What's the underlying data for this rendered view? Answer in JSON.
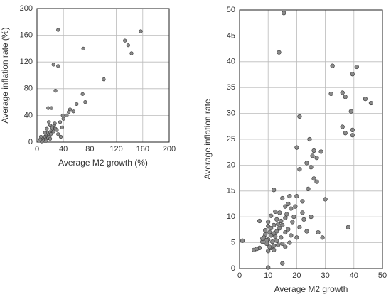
{
  "chart_data": [
    {
      "type": "scatter",
      "x_label": "Average M2 growth (%)",
      "y_label": "Average inflation rate (%)",
      "xlim": [
        0,
        200
      ],
      "ylim": [
        0,
        200
      ],
      "xticks": [
        0,
        40,
        80,
        120,
        160,
        200
      ],
      "yticks": [
        0,
        40,
        80,
        120,
        160,
        200
      ],
      "grid": true,
      "color": "#8a8a8a",
      "x": [
        32,
        25,
        32,
        70,
        133,
        138,
        143,
        157,
        101,
        28,
        17,
        22,
        69,
        73,
        60,
        50,
        55,
        39,
        10,
        12,
        14,
        15,
        16,
        18,
        20,
        22,
        24,
        25,
        13,
        11,
        9,
        8,
        17,
        19,
        21,
        23,
        26,
        28,
        30,
        27,
        15,
        12,
        20,
        32,
        35,
        38,
        40,
        45,
        48,
        36,
        18,
        14,
        6,
        7,
        5,
        20
      ],
      "y": [
        168,
        116,
        114,
        140,
        152,
        145,
        133,
        166,
        94,
        77,
        51,
        51,
        72,
        60,
        57,
        49,
        46,
        40,
        5,
        8,
        10,
        12,
        14,
        10,
        15,
        18,
        20,
        16,
        4,
        2,
        3,
        6,
        6,
        8,
        12,
        22,
        25,
        20,
        18,
        28,
        20,
        14,
        25,
        12,
        30,
        22,
        35,
        40,
        45,
        8,
        30,
        2,
        8,
        1,
        4,
        5
      ]
    },
    {
      "type": "scatter",
      "x_label": "Average M2 growth",
      "y_label": "Average inflation rate",
      "xlim": [
        0,
        50
      ],
      "ylim": [
        0,
        50
      ],
      "xticks": [
        0,
        10,
        20,
        30,
        40,
        50
      ],
      "yticks": [
        0,
        5,
        10,
        15,
        20,
        25,
        30,
        35,
        40,
        45,
        50
      ],
      "grid": true,
      "color": "#8a8a8a",
      "x": [
        15.5,
        13.8,
        32.5,
        41,
        39.5,
        36,
        32,
        37,
        44,
        46,
        39,
        36,
        39.5,
        37,
        39.5,
        21,
        24.5,
        20,
        26,
        28.5,
        25.5,
        27,
        23.5,
        25,
        21,
        26,
        27,
        24,
        30,
        38,
        27.5,
        29,
        23.5,
        1,
        5,
        7,
        12,
        20,
        22,
        22,
        25,
        17.5,
        15,
        16,
        17,
        18,
        19,
        16,
        14,
        12.5,
        11,
        13,
        12,
        10,
        11,
        10.5,
        9,
        8.5,
        10,
        11.5,
        12.5,
        13,
        14,
        15,
        16,
        17,
        18,
        14.5,
        13,
        12,
        11,
        10,
        9.5,
        8,
        9,
        10,
        13.5,
        15,
        16,
        12,
        7,
        6,
        10,
        15,
        9.5,
        11,
        13.5,
        14.5,
        16.5,
        18.5,
        17.5,
        20,
        21,
        22.5,
        19.5,
        12,
        10.5,
        8
      ],
      "y": [
        49.4,
        41.8,
        39.2,
        39,
        37.6,
        34,
        33.8,
        33.2,
        32.8,
        32,
        30.4,
        27.4,
        26.8,
        26.2,
        25.8,
        29.4,
        25,
        23.4,
        22.8,
        22.6,
        21.8,
        21.4,
        20.4,
        19.6,
        19.2,
        17.4,
        16.8,
        15.4,
        13.4,
        8,
        7,
        6,
        7.2,
        5.4,
        3.6,
        9.2,
        15.2,
        14,
        13,
        10.8,
        10,
        14,
        13.6,
        12,
        12.5,
        11.6,
        10,
        9.8,
        10.8,
        11,
        10.2,
        9.5,
        8.4,
        8.2,
        7.8,
        7,
        6.6,
        6,
        5.6,
        5.2,
        6.2,
        7.2,
        7.8,
        8.4,
        7,
        7.6,
        6.4,
        6,
        5.4,
        4.4,
        4,
        3.4,
        4.8,
        5.2,
        7.4,
        9,
        4.6,
        4.8,
        4.2,
        3.6,
        4,
        3.8,
        0.2,
        1,
        5.5,
        6.4,
        8.6,
        9.2,
        10.5,
        9,
        5,
        6,
        8,
        9.5,
        12,
        6.8,
        4.2,
        5.8
      ]
    }
  ]
}
